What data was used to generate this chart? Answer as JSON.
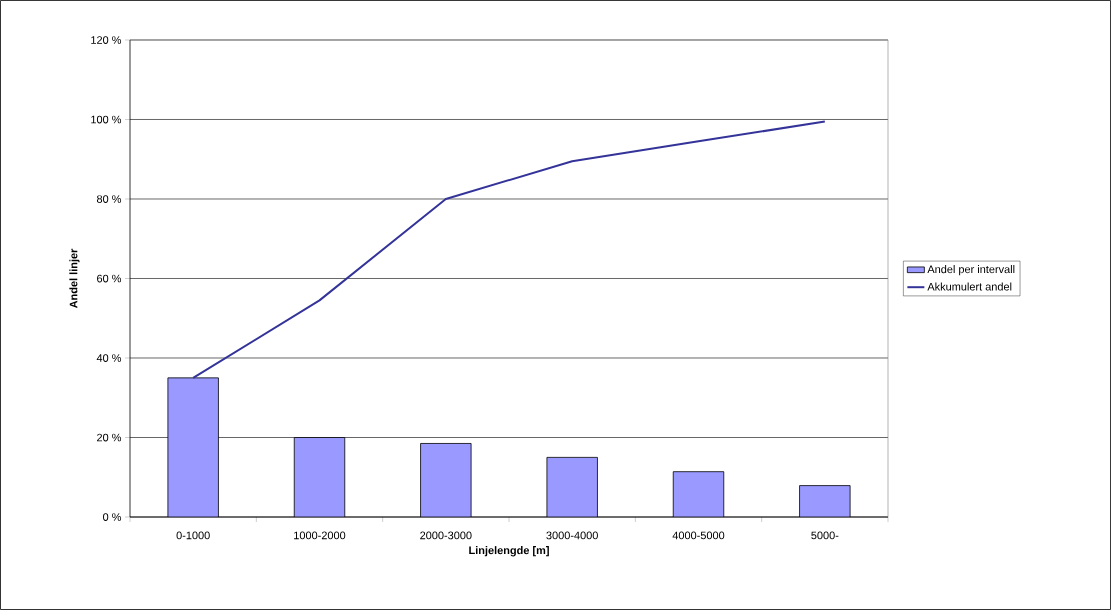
{
  "chart_data": {
    "type": "bar",
    "xlabel": "Linjelengde [m]",
    "ylabel": "Andel linjer",
    "categories": [
      "0-1000",
      "1000-2000",
      "2000-3000",
      "3000-4000",
      "4000-5000",
      "5000-"
    ],
    "series": [
      {
        "name": "Andel per intervall",
        "color": "#9999ff",
        "values": [
          35,
          20,
          18.5,
          15,
          11.4,
          7.9
        ]
      },
      {
        "name": "Akkumulert andel",
        "type": "line",
        "color": "#333399",
        "values": [
          35,
          54.5,
          80,
          89.5,
          94.5,
          99.5
        ]
      }
    ],
    "ylim": [
      0,
      120
    ],
    "yticks": [
      {
        "value": 0,
        "label": "0 %"
      },
      {
        "value": 20,
        "label": "20 %"
      },
      {
        "value": 40,
        "label": "40 %"
      },
      {
        "value": 60,
        "label": "60 %"
      },
      {
        "value": 80,
        "label": "80 %"
      },
      {
        "value": 100,
        "label": "100 %"
      },
      {
        "value": 120,
        "label": "120 %"
      }
    ],
    "grid": "y",
    "legend": "right",
    "marker": "none"
  }
}
